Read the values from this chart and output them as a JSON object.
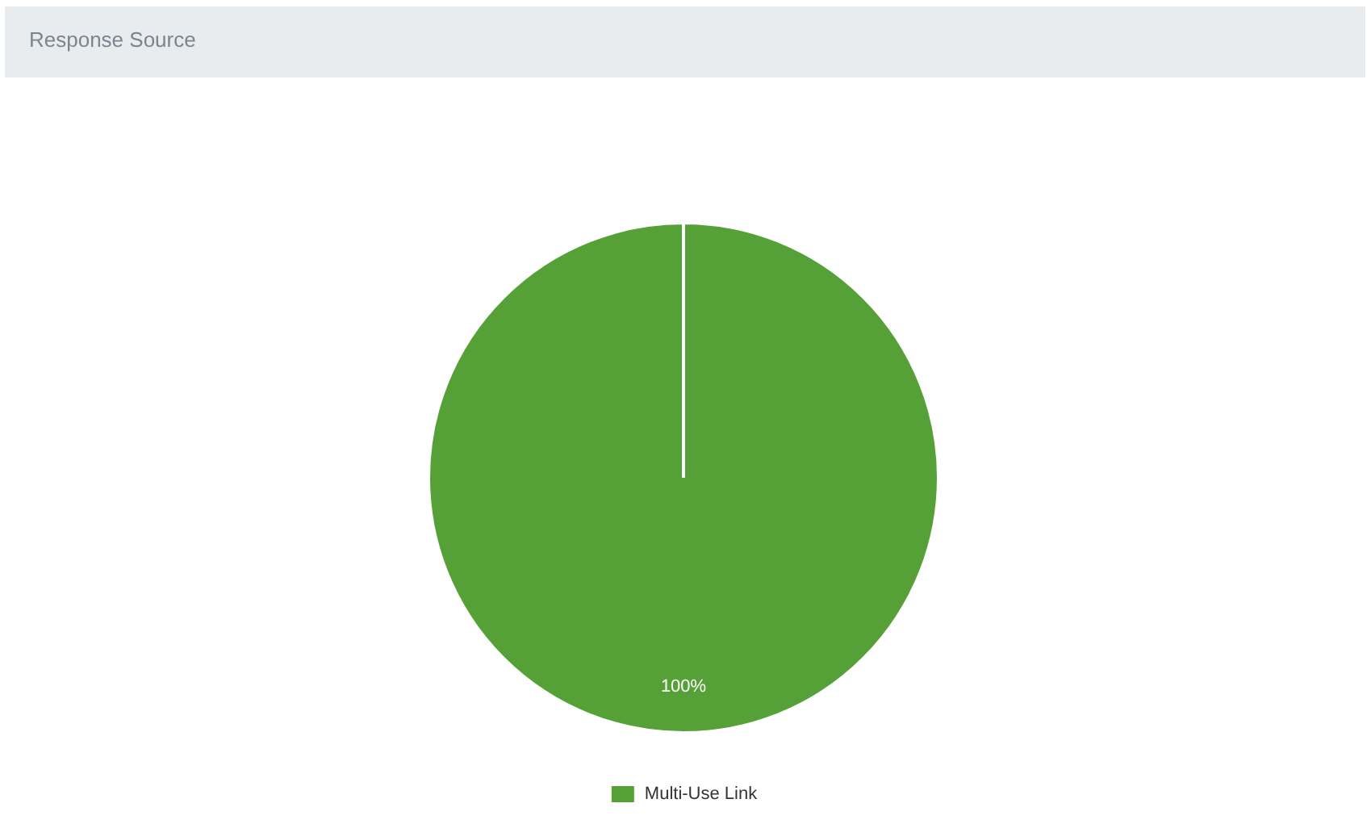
{
  "chart_data": {
    "type": "pie",
    "title": "Response Source",
    "categories": [
      "Multi-Use Link"
    ],
    "values": [
      100
    ],
    "colors": [
      "#55a137"
    ],
    "value_labels": [
      "100%"
    ],
    "legend": "bottom"
  }
}
